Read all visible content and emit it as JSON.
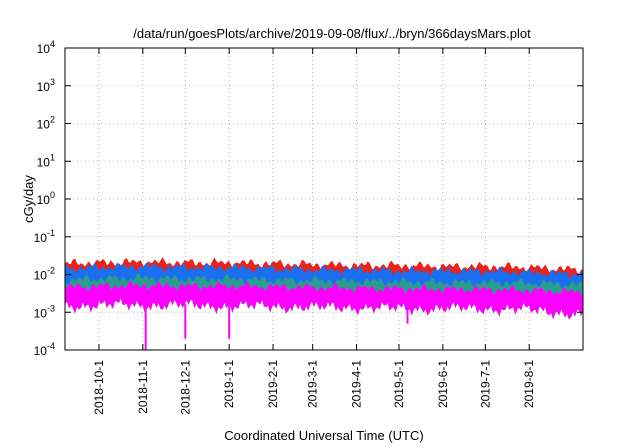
{
  "chart_data": {
    "type": "area",
    "title": "/data/run/goesPlots/archive/2019-09-08/flux/../bryn/366daysMars.plot",
    "xlabel": "Coordinated Universal Time (UTC)",
    "ylabel": "cGy/day",
    "y_scale": "log",
    "ylim": [
      0.0001,
      10000
    ],
    "xlim": [
      "2018-09-07",
      "2019-09-08"
    ],
    "grid": true,
    "y_ticks": [
      {
        "value": 0.0001,
        "base": "10",
        "exp": "-4"
      },
      {
        "value": 0.001,
        "base": "10",
        "exp": "-3"
      },
      {
        "value": 0.01,
        "base": "10",
        "exp": "-2"
      },
      {
        "value": 0.1,
        "base": "10",
        "exp": "-1"
      },
      {
        "value": 1,
        "base": "10",
        "exp": "0"
      },
      {
        "value": 10,
        "base": "10",
        "exp": "1"
      },
      {
        "value": 100,
        "base": "10",
        "exp": "2"
      },
      {
        "value": 1000,
        "base": "10",
        "exp": "3"
      },
      {
        "value": 10000,
        "base": "10",
        "exp": "4"
      }
    ],
    "x_ticks": [
      {
        "label": "2018-10-1",
        "date": "2018-10-01"
      },
      {
        "label": "2018-11-1",
        "date": "2018-11-01"
      },
      {
        "label": "2018-12-1",
        "date": "2018-12-01"
      },
      {
        "label": "2019-1-1",
        "date": "2019-01-01"
      },
      {
        "label": "2019-2-1",
        "date": "2019-02-01"
      },
      {
        "label": "2019-3-1",
        "date": "2019-03-01"
      },
      {
        "label": "2019-4-1",
        "date": "2019-04-01"
      },
      {
        "label": "2019-5-1",
        "date": "2019-05-01"
      },
      {
        "label": "2019-6-1",
        "date": "2019-06-01"
      },
      {
        "label": "2019-7-1",
        "date": "2019-07-01"
      },
      {
        "label": "2019-8-1",
        "date": "2019-08-01"
      }
    ],
    "series": [
      {
        "color": "#e8231c",
        "x": [
          "2018-09-07",
          "2018-10-01",
          "2018-11-01",
          "2018-12-01",
          "2019-01-01",
          "2019-02-01",
          "2019-03-01",
          "2019-04-01",
          "2019-05-01",
          "2019-06-01",
          "2019-07-01",
          "2019-08-01",
          "2019-09-08"
        ],
        "values": [
          0.019,
          0.02,
          0.021,
          0.02,
          0.02,
          0.019,
          0.018,
          0.017,
          0.017,
          0.016,
          0.016,
          0.015,
          0.013
        ]
      },
      {
        "color": "#1a6ef0",
        "x": [
          "2018-09-07",
          "2018-10-01",
          "2018-11-01",
          "2018-12-01",
          "2019-01-01",
          "2019-02-01",
          "2019-03-01",
          "2019-04-01",
          "2019-05-01",
          "2019-06-01",
          "2019-07-01",
          "2019-08-01",
          "2019-09-08"
        ],
        "values": [
          0.014,
          0.015,
          0.016,
          0.015,
          0.015,
          0.014,
          0.013,
          0.013,
          0.012,
          0.012,
          0.012,
          0.011,
          0.01
        ]
      },
      {
        "color": "#2a9d8f",
        "x": [
          "2018-09-07",
          "2018-10-01",
          "2018-11-01",
          "2018-12-01",
          "2019-01-01",
          "2019-02-01",
          "2019-03-01",
          "2019-04-01",
          "2019-05-01",
          "2019-06-01",
          "2019-07-01",
          "2019-08-01",
          "2019-09-08"
        ],
        "values": [
          0.007,
          0.0075,
          0.008,
          0.0075,
          0.0075,
          0.007,
          0.0068,
          0.0065,
          0.0063,
          0.006,
          0.006,
          0.0058,
          0.0052
        ]
      },
      {
        "color": "#ff00ff",
        "x": [
          "2018-09-07",
          "2018-10-01",
          "2018-11-01",
          "2018-12-01",
          "2019-01-01",
          "2019-02-01",
          "2019-03-01",
          "2019-04-01",
          "2019-05-01",
          "2019-06-01",
          "2019-07-01",
          "2019-08-01",
          "2019-09-08"
        ],
        "values": [
          0.0045,
          0.0048,
          0.005,
          0.0048,
          0.0048,
          0.0046,
          0.0044,
          0.0042,
          0.0041,
          0.004,
          0.0039,
          0.0037,
          0.0033
        ]
      }
    ],
    "lower_bound": {
      "x": [
        "2018-09-07",
        "2018-10-01",
        "2018-11-01",
        "2018-12-01",
        "2019-01-01",
        "2019-02-01",
        "2019-03-01",
        "2019-04-01",
        "2019-05-01",
        "2019-06-01",
        "2019-07-01",
        "2019-08-01",
        "2019-09-08"
      ],
      "values": [
        0.0015,
        0.0016,
        0.0016,
        0.0016,
        0.0015,
        0.0015,
        0.0014,
        0.0014,
        0.0013,
        0.0013,
        0.0013,
        0.0012,
        0.0009
      ]
    },
    "dips": [
      {
        "date": "2018-11-03",
        "value": 0.0001
      },
      {
        "date": "2018-12-01",
        "value": 0.0002
      },
      {
        "date": "2019-01-01",
        "value": 0.0002
      },
      {
        "date": "2019-05-07",
        "value": 0.0005
      }
    ]
  }
}
